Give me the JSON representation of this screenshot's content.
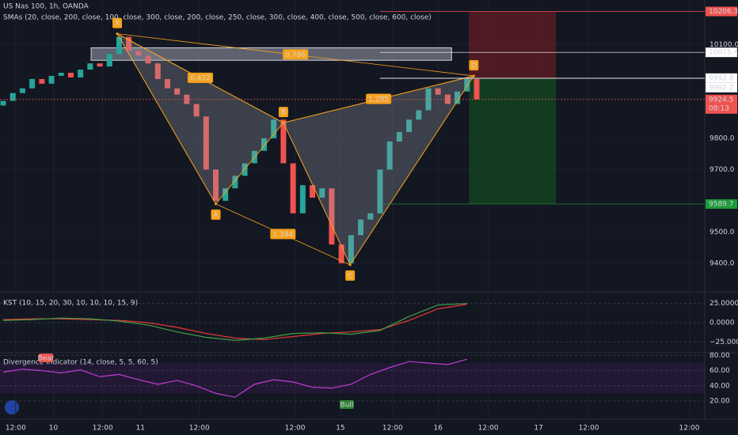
{
  "chart_data": [
    {
      "type": "candlestick",
      "title": "US Nas 100, 1h, OANDA",
      "subtitle": "SMAs (20, close, 200, close, 100, close, 300, close, 200, close, 250, close, 300, close, 400, close, 500, close, 600, close)",
      "open": [
        9905,
        9920,
        9945,
        9960,
        9990,
        9975,
        10000,
        10010,
        9995,
        10020,
        10040,
        10030,
        10070,
        10125,
        10080,
        10065,
        10040,
        9990,
        9960,
        9940,
        9910,
        9870,
        9700,
        9600,
        9640,
        9680,
        9720,
        9760,
        9800,
        9860,
        9720,
        9560,
        9650,
        9610,
        9640,
        9460,
        9400,
        9490,
        9540,
        9560,
        9700,
        9790,
        9820,
        9860,
        9890,
        9960,
        9940,
        9910,
        9950,
        9990
      ],
      "close": [
        9920,
        9945,
        9960,
        9990,
        9975,
        10000,
        10010,
        9995,
        10020,
        10040,
        10030,
        10070,
        10125,
        10080,
        10065,
        10040,
        9990,
        9960,
        9940,
        9910,
        9870,
        9700,
        9600,
        9640,
        9680,
        9720,
        9760,
        9800,
        9860,
        9720,
        9560,
        9650,
        9610,
        9640,
        9460,
        9400,
        9490,
        9540,
        9560,
        9700,
        9790,
        9820,
        9860,
        9890,
        9960,
        9940,
        9910,
        9950,
        9990,
        9925
      ],
      "up_color": "#26a69a",
      "down_color": "#ef5350",
      "xlim": [
        -0.33,
        72.6
      ],
      "xticks": [
        {
          "value": 1.3,
          "label": "12:00"
        },
        {
          "value": 5.2,
          "label": "10"
        },
        {
          "value": 10.3,
          "label": "12:00"
        },
        {
          "value": 14.2,
          "label": "11"
        },
        {
          "value": 20.3,
          "label": "12:00"
        },
        {
          "value": 30.2,
          "label": "12:00"
        },
        {
          "value": 34.9,
          "label": "15"
        },
        {
          "value": 40.3,
          "label": "12:00"
        },
        {
          "value": 45,
          "label": "16"
        },
        {
          "value": 50.2,
          "label": "12:00"
        },
        {
          "value": 55.4,
          "label": "17"
        },
        {
          "value": 60.6,
          "label": "12:00"
        },
        {
          "value": 71,
          "label": "12:00"
        }
      ],
      "ylim": [
        9311,
        10243
      ],
      "yticks": [
        {
          "value": 9400,
          "label": "9400.0"
        },
        {
          "value": 9500,
          "label": "9500.0"
        },
        {
          "value": 9700,
          "label": "9700.0"
        },
        {
          "value": 9800,
          "label": "9800.0"
        },
        {
          "value": 10100,
          "label": "10100.0"
        }
      ],
      "pattern": {
        "color": "#f7a21b",
        "points": [
          {
            "label": "X",
            "x": 11.8,
            "y": 10135
          },
          {
            "label": "A",
            "x": 22,
            "y": 9590
          },
          {
            "label": "B",
            "x": 29,
            "y": 9850
          },
          {
            "label": "C",
            "x": 35.9,
            "y": 9395
          },
          {
            "label": "D",
            "x": 48.7,
            "y": 10000
          }
        ],
        "ratios": [
          "0.786",
          "0.472",
          "1.295",
          "1.344"
        ]
      },
      "zones": [
        {
          "x": [
            48.2,
            57.2
          ],
          "y": [
            9992.8,
            10206.3
          ],
          "color": "#7f1d24"
        },
        {
          "x": [
            48.2,
            57.2
          ],
          "y": [
            9589.7,
            9992.8
          ],
          "color": "#145a1f"
        },
        {
          "x": [
            9.1,
            46.4
          ],
          "y": [
            10050,
            10090
          ],
          "color": "#9aa0ad"
        }
      ],
      "price_labels": [
        {
          "value": 10206.3,
          "color": "#ef5350"
        },
        {
          "value": 10075.4,
          "color": "#ffffff"
        },
        {
          "value": 9992.8,
          "color": "#ffffff"
        },
        {
          "value": 9992.2,
          "color": "#ffffff"
        },
        {
          "value": 9924.5,
          "color": "#ef5350",
          "timer": "08:13"
        },
        {
          "value": 9589.7,
          "color": "#1e9a3a"
        }
      ]
    },
    {
      "type": "line",
      "title": "KST (10, 15, 20, 30, 10, 10, 10, 15, 9)",
      "x": [
        0,
        3,
        6,
        9,
        12,
        15,
        18,
        21,
        24,
        27,
        30,
        33,
        36,
        39,
        42,
        45,
        48
      ],
      "series": [
        {
          "color": "#e53935",
          "values": [
            4,
            5,
            5,
            4,
            3,
            0,
            -6,
            -14,
            -20,
            -22,
            -18,
            -14,
            -12,
            -9,
            3,
            18,
            24
          ]
        },
        {
          "color": "#43a047",
          "values": [
            3,
            4,
            6,
            5,
            2,
            -3,
            -12,
            -19,
            -23,
            -20,
            -14,
            -13,
            -15,
            -10,
            8,
            23,
            25
          ]
        }
      ],
      "xlim": [
        -0.33,
        72.6
      ],
      "ylim": [
        -38,
        37
      ],
      "yticks": [
        {
          "value": 25,
          "label": "25.0000"
        },
        {
          "value": 0,
          "label": "0.0000"
        },
        {
          "value": -25,
          "label": "−25.0000"
        }
      ]
    },
    {
      "type": "line",
      "title": "Divergence Indicator (14, close, 5, 5, 60, 5)",
      "annotations": [
        "Bear",
        "Bull"
      ],
      "x": [
        0,
        2,
        4,
        6,
        8,
        10,
        12,
        14,
        16,
        18,
        20,
        22,
        24,
        26,
        28,
        30,
        32,
        34,
        36,
        38,
        40,
        42,
        44,
        46,
        48
      ],
      "series": [
        {
          "color": "#c03dd6",
          "values": [
            58,
            62,
            60,
            57,
            61,
            52,
            55,
            48,
            42,
            47,
            40,
            30,
            25,
            42,
            48,
            45,
            38,
            37,
            42,
            55,
            64,
            72,
            70,
            68,
            75
          ]
        }
      ],
      "xlim": [
        -0.33,
        72.6
      ],
      "ylim": [
        -4,
        82.5
      ],
      "yticks": [
        {
          "value": 20,
          "label": "20.00"
        },
        {
          "value": 40,
          "label": "40.00"
        },
        {
          "value": 60,
          "label": "60.00"
        },
        {
          "value": 80,
          "label": "80.00"
        }
      ]
    }
  ]
}
